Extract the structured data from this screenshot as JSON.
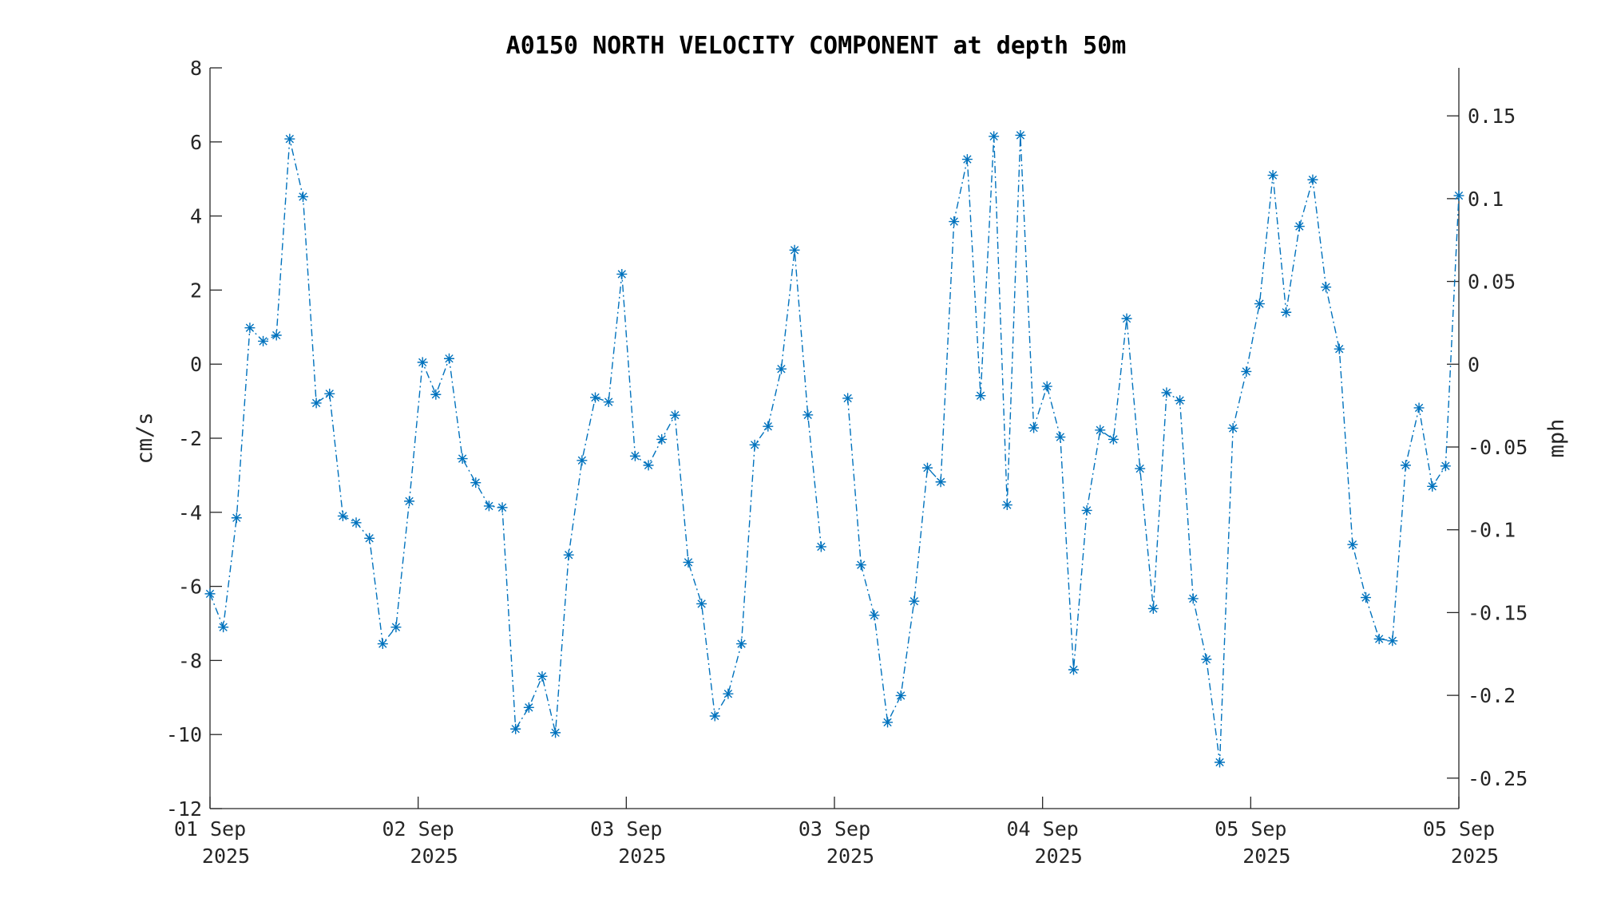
{
  "chart_data": {
    "type": "line",
    "title": "A0150 NORTH VELOCITY COMPONENT at depth 50m",
    "ylabel": "cm/s",
    "y2label": "mph",
    "ylim": [
      -12,
      8
    ],
    "y2lim": [
      -0.2684,
      0.179
    ],
    "yticks": [
      "8",
      "6",
      "4",
      "2",
      "0",
      "-2",
      "-4",
      "-6",
      "-8",
      "-10",
      "-12"
    ],
    "y2ticks": [
      "0.15",
      "0.1",
      "0.05",
      "0",
      "-0.05",
      "-0.1",
      "-0.15",
      "-0.2",
      "-0.25"
    ],
    "xticks": [
      {
        "day": "01 Sep",
        "year": "2025"
      },
      {
        "day": "02 Sep",
        "year": "2025"
      },
      {
        "day": "03 Sep",
        "year": "2025"
      },
      {
        "day": "03 Sep",
        "year": "2025"
      },
      {
        "day": "04 Sep",
        "year": "2025"
      },
      {
        "day": "05 Sep",
        "year": "2025"
      },
      {
        "day": "05 Sep",
        "year": "2025"
      }
    ],
    "grid": false,
    "legend": "none",
    "marker": "asterisk",
    "line_style": "dash-dot",
    "series_color": "#0072BD",
    "series": [
      {
        "values": [
          -6.2,
          -7.1,
          -4.15,
          0.98,
          0.62,
          0.78,
          6.08,
          4.52,
          -1.05,
          -0.8,
          -4.1,
          -4.28,
          -4.7,
          -7.55,
          -7.1,
          -3.7,
          0.05,
          -0.82,
          0.15,
          -2.55,
          -3.2,
          -3.83,
          -3.87,
          -9.85,
          -9.27,
          -8.43,
          -9.95,
          -5.15,
          -2.6,
          -0.9,
          -1.02,
          2.43,
          -2.48,
          -2.73,
          -2.03,
          -1.38,
          -5.35,
          -6.47,
          -9.5,
          -8.9,
          -7.55,
          -2.18,
          -1.68,
          -0.13,
          3.08,
          -1.37,
          -4.93,
          null,
          -0.92,
          -5.42,
          -6.78,
          -9.67,
          -8.95,
          -6.4,
          -2.8,
          -3.18,
          3.85,
          5.53,
          -0.85,
          6.15,
          -3.8,
          6.18,
          -1.72,
          -0.6,
          -1.97,
          -8.25,
          -3.95,
          -1.78,
          -2.03,
          1.23,
          -2.82,
          -6.6,
          -0.77,
          -0.98,
          -6.33,
          -7.97,
          -10.75,
          -1.73,
          -0.2,
          1.63,
          5.1,
          1.4,
          3.72,
          4.98,
          2.08,
          0.41,
          -4.87,
          -6.3,
          -7.42,
          -7.47,
          -2.73,
          -1.18,
          -3.3,
          -2.75,
          4.55
        ]
      }
    ]
  }
}
